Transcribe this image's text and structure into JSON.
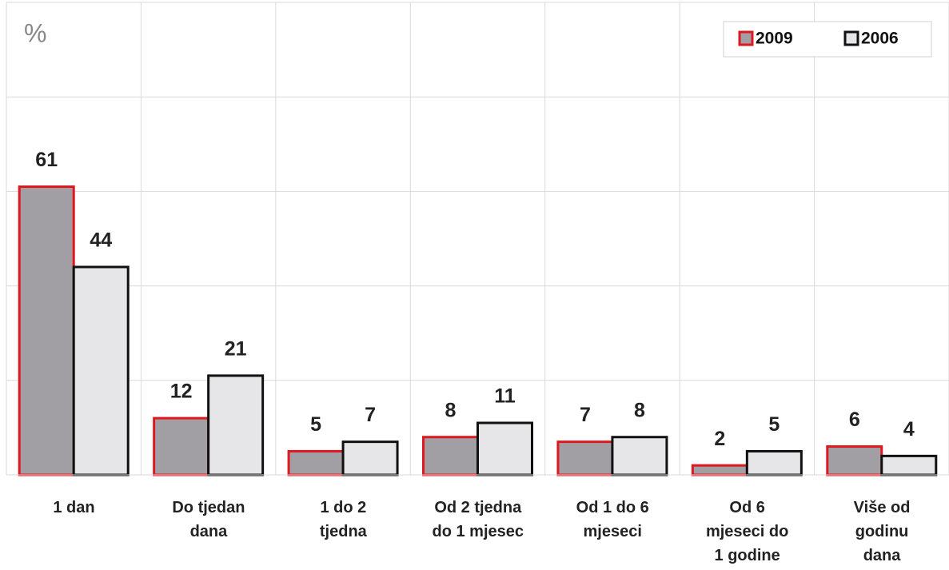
{
  "chart_data": {
    "type": "bar",
    "y_label": "%",
    "categories": [
      "1 dan",
      "Do tjedan\ndana",
      "1 do 2\ntjedna",
      "Od 2 tjedna\ndo 1 mjesec",
      "Od 1 do 6\nmjeseci",
      "Od 6\nmjeseci do\n1 godine",
      "Više od\ngodinu\ndana"
    ],
    "series": [
      {
        "name": "2009",
        "color": "#a19fa4",
        "edge_color": "#e0171f",
        "values": [
          61,
          12,
          5,
          8,
          7,
          2,
          6
        ]
      },
      {
        "name": "2006",
        "color": "#e6e6e8",
        "edge_color": "#111111",
        "values": [
          44,
          21,
          7,
          11,
          8,
          5,
          4
        ]
      }
    ],
    "ylim": [
      0,
      100
    ],
    "yticks": [
      0,
      20,
      40,
      60,
      80,
      100
    ],
    "grid": true,
    "legend": "top-right"
  }
}
